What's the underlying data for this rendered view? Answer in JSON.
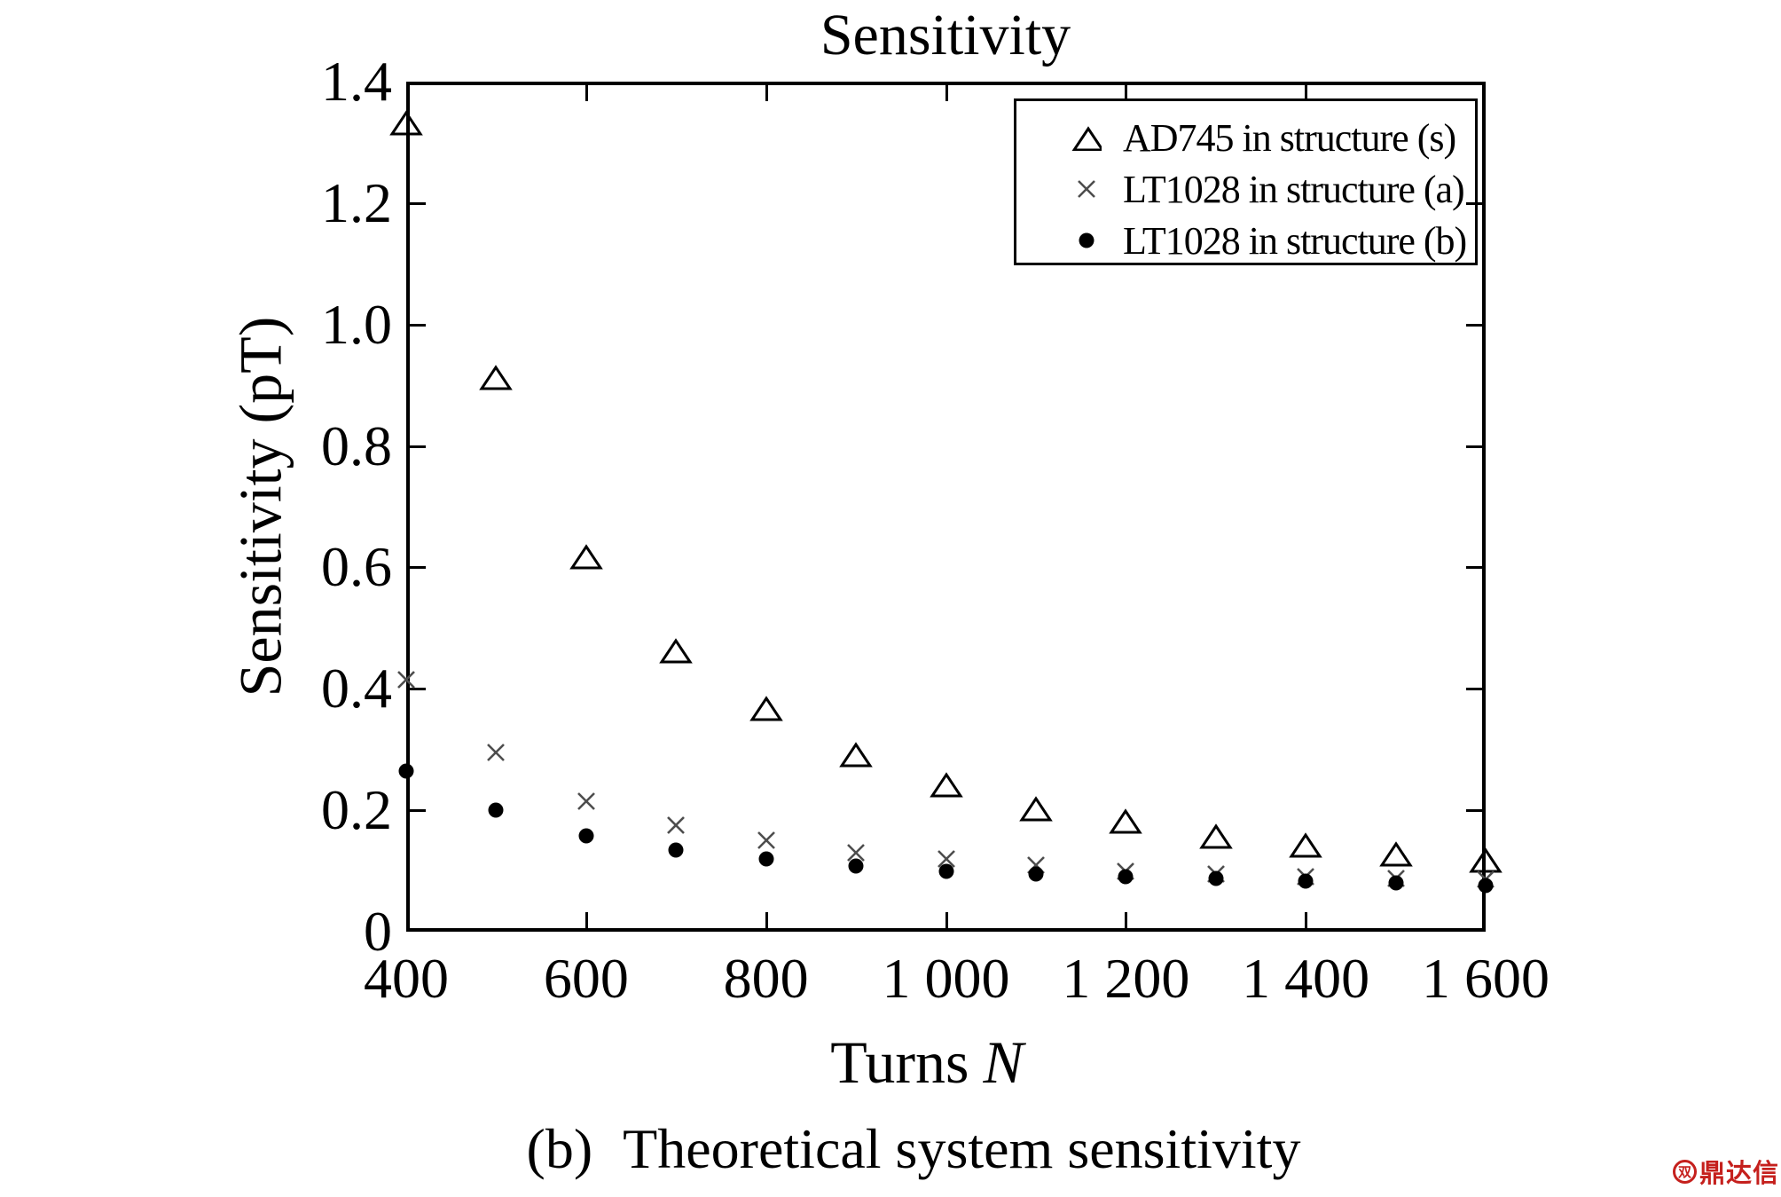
{
  "figure": {
    "title": "Sensitivity",
    "ylabel": "Sensitivity (pT)",
    "xlabel_prefix": "Turns",
    "xlabel_var": "N",
    "caption_tag": "(b)",
    "caption_text": "Theoretical system sensitivity"
  },
  "legend": {
    "items": [
      {
        "label": "AD745 in structure (s)",
        "marker": "triangle"
      },
      {
        "label": "LT1028 in structure (a)",
        "marker": "x"
      },
      {
        "label": "LT1028 in structure (b)",
        "marker": "dot"
      }
    ]
  },
  "watermark": {
    "logo_char": "双",
    "text": "鼎达信"
  },
  "chart_data": {
    "type": "scatter",
    "title": "Sensitivity",
    "xlabel": "Turns N",
    "ylabel": "Sensitivity (pT)",
    "xlim": [
      400,
      1600
    ],
    "ylim": [
      0,
      1.4
    ],
    "grid": false,
    "legend_position": "top-right",
    "x_ticks": [
      400,
      600,
      800,
      1000,
      1200,
      1400,
      1600
    ],
    "x_tick_labels": [
      "400",
      "600",
      "800",
      "1 000",
      "1 200",
      "1 400",
      "1 600"
    ],
    "y_ticks": [
      0,
      0.2,
      0.4,
      0.6,
      0.8,
      1.0,
      1.2,
      1.4
    ],
    "y_tick_labels": [
      "0",
      "0.2",
      "0.4",
      "0.6",
      "0.8",
      "1.0",
      "1.2",
      "1.4"
    ],
    "x": [
      400,
      500,
      600,
      700,
      800,
      900,
      1000,
      1100,
      1200,
      1300,
      1400,
      1500,
      1600
    ],
    "series": [
      {
        "name": "AD745 in structure (s)",
        "marker": "triangle",
        "color": "#000000",
        "values": [
          1.33,
          0.91,
          0.615,
          0.46,
          0.365,
          0.29,
          0.24,
          0.2,
          0.18,
          0.155,
          0.14,
          0.125,
          0.115
        ]
      },
      {
        "name": "LT1028 in structure (a)",
        "marker": "x",
        "color": "#4d4d4d",
        "values": [
          0.415,
          0.295,
          0.215,
          0.175,
          0.15,
          0.13,
          0.12,
          0.11,
          0.1,
          0.095,
          0.09,
          0.088,
          0.086
        ]
      },
      {
        "name": "LT1028 in structure (b)",
        "marker": "dot",
        "color": "#000000",
        "values": [
          0.265,
          0.2,
          0.158,
          0.135,
          0.12,
          0.108,
          0.1,
          0.095,
          0.09,
          0.087,
          0.084,
          0.08,
          0.076
        ]
      }
    ]
  }
}
